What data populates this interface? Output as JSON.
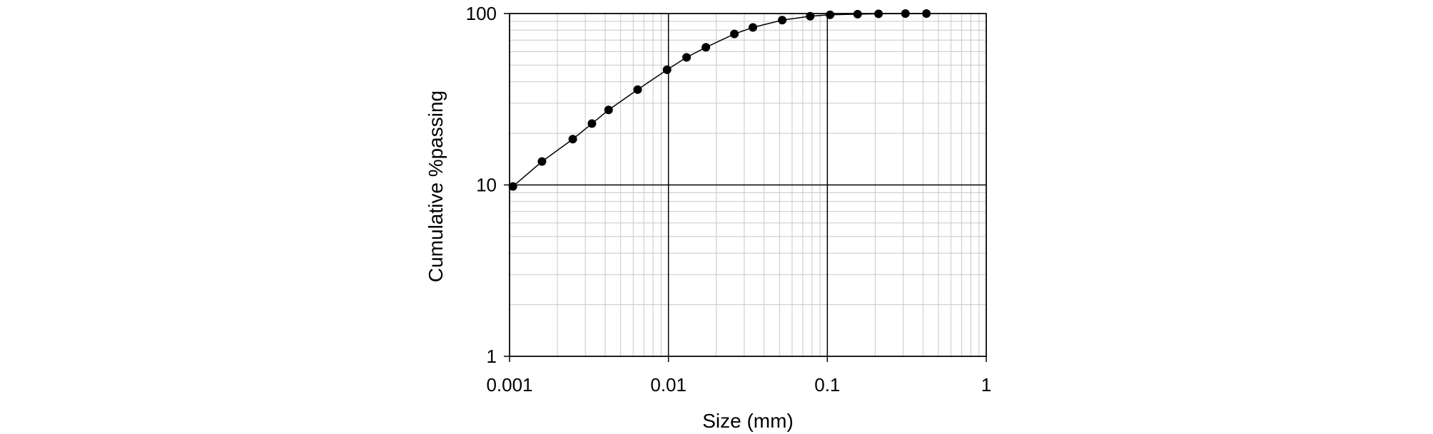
{
  "chart_data": {
    "type": "scatter",
    "title": "",
    "xlabel": "Size (mm)",
    "ylabel": "Cumulative %passing",
    "xscale": "log",
    "yscale": "log",
    "xlim": [
      0.001,
      1
    ],
    "ylim": [
      1,
      100
    ],
    "grid": true,
    "legend": "none",
    "x_ticks": [
      {
        "value": 0.001,
        "label": "0.001"
      },
      {
        "value": 0.01,
        "label": "0.01"
      },
      {
        "value": 0.1,
        "label": "0.1"
      },
      {
        "value": 1,
        "label": "1"
      }
    ],
    "y_ticks": [
      {
        "value": 1,
        "label": "1"
      },
      {
        "value": 10,
        "label": "10"
      },
      {
        "value": 100,
        "label": "100"
      }
    ],
    "series": [
      {
        "line": true,
        "markers": "filled-circle",
        "color": "#000000",
        "x": [
          0.00105,
          0.0016,
          0.0025,
          0.0033,
          0.0042,
          0.0064,
          0.0098,
          0.013,
          0.0172,
          0.026,
          0.034,
          0.052,
          0.078,
          0.104,
          0.155,
          0.21,
          0.31,
          0.42
        ],
        "y": [
          9.8,
          13.7,
          18.5,
          22.8,
          27.4,
          36.0,
          47.0,
          55.5,
          63.5,
          76.0,
          83.0,
          91.5,
          96.5,
          98.3,
          99.2,
          99.6,
          100.0,
          100.0
        ]
      }
    ]
  }
}
